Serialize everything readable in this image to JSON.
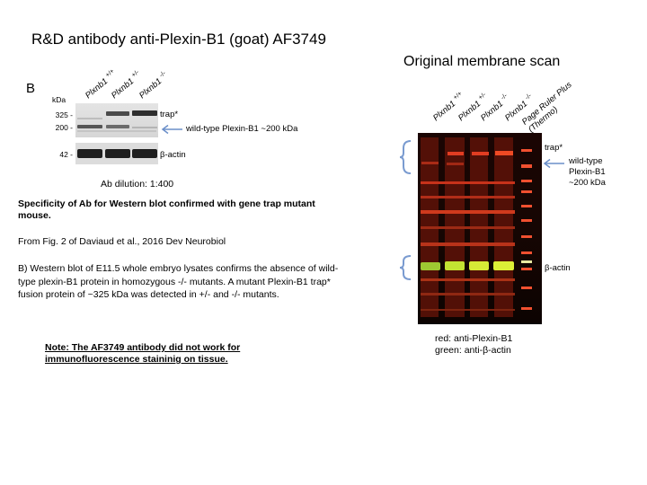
{
  "title": "R&D antibody anti-Plexin-B1 (goat) AF3749",
  "scan_title": "Original membrane scan",
  "left_blot": {
    "panel_letter": "B",
    "kda_label": "kDa",
    "lanes": [
      {
        "gene": "Plxnb1",
        "genotype": "+/+"
      },
      {
        "gene": "Plxnb1",
        "genotype": "+/-"
      },
      {
        "gene": "Plxnb1",
        "genotype": "-/-"
      }
    ],
    "mw_markers": [
      "325 -",
      "200 -",
      "42 -"
    ],
    "trap_label": "trap*",
    "wild_type_label": "wild-type Plexin-B1 ~200 kDa",
    "actin_label": "β-actin",
    "dilution": "Ab dilution: 1:400"
  },
  "text": {
    "specificity": "Specificity of Ab for Western blot confirmed with gene trap mutant mouse.",
    "source": "From Fig. 2 of Daviaud et al., 2016 Dev Neurobiol",
    "description": "B) Western blot of E11.5 whole embryo lysates confirms the absence of wild-type plexin-B1 protein in homozygous -/- mutants. A mutant Plexin-B1 trap* fusion protein of ~325 kDa was detected in +/- and -/- mutants.",
    "note": "Note: The AF3749 antibody did not work for immunofluorescence staininig on tissue."
  },
  "membrane": {
    "lanes": [
      {
        "gene": "Plxnb1",
        "genotype": "+/+"
      },
      {
        "gene": "Plxnb1",
        "genotype": "+/-"
      },
      {
        "gene": "Plxnb1",
        "genotype": "-/-"
      },
      {
        "gene": "Plxnb1",
        "genotype": "-/-"
      }
    ],
    "ladder_label_line1": "Page Ruler Plus",
    "ladder_label_line2": "(Thermo)",
    "trap_label": "trap*",
    "wild_type_line1": "wild-type",
    "wild_type_line2": "Plexin-B1",
    "wild_type_line3": "~200 kDa",
    "actin_label": "β-actin",
    "legend_red": "red: anti-Plexin-B1",
    "legend_green": "green: anti-β-actin"
  },
  "colors": {
    "arrow_blue": "#6b8fc9",
    "bracket_blue": "#7a9bd0",
    "blot_red": "#e02a1c",
    "blot_green": "#b9e22a"
  }
}
